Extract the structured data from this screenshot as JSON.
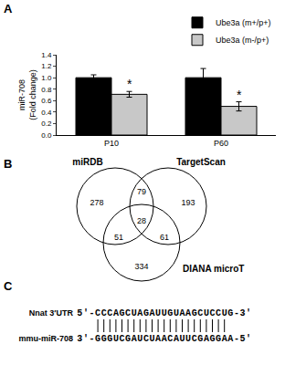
{
  "chart_data": {
    "type": "bar",
    "label": "A",
    "ylabel": [
      "miR-708",
      "(Fold change)"
    ],
    "categories": [
      "P10",
      "P60"
    ],
    "series": [
      {
        "name": "Ube3a (m+/p+)",
        "color": "#000000",
        "values": [
          1.0,
          1.0
        ],
        "errors": [
          0.05,
          0.16
        ]
      },
      {
        "name": "Ube3a (m-/p+)",
        "color": "#c8c8c8",
        "values": [
          0.71,
          0.5
        ],
        "errors": [
          0.05,
          0.08
        ]
      }
    ],
    "annotations": [
      {
        "category": "P10",
        "series": "Ube3a (m-/p+)",
        "text": "*"
      },
      {
        "category": "P60",
        "series": "Ube3a (m-/p+)",
        "text": "*"
      }
    ],
    "ylim": [
      0,
      1.4
    ],
    "yticks": [
      {
        "value": 0,
        "label": "0.0"
      },
      {
        "value": 0.2,
        "label": "0.2"
      },
      {
        "value": 0.4,
        "label": "0.4"
      },
      {
        "value": 0.6,
        "label": "0.6"
      },
      {
        "value": 0.8,
        "label": "0.8"
      },
      {
        "value": 1.0,
        "label": "1.0"
      },
      {
        "value": 1.2,
        "label": "1.2"
      },
      {
        "value": 1.4,
        "label": "1.4"
      }
    ],
    "grid": false,
    "legend": "top right"
  },
  "venn": {
    "label": "B",
    "sets": [
      "miRDB",
      "TargetScan",
      "DIANA microT"
    ],
    "regions": [
      {
        "sets": [
          "miRDB"
        ],
        "value": 278
      },
      {
        "sets": [
          "TargetScan"
        ],
        "value": 193
      },
      {
        "sets": [
          "DIANA microT"
        ],
        "value": 334
      },
      {
        "sets": [
          "miRDB",
          "TargetScan"
        ],
        "value": 79
      },
      {
        "sets": [
          "miRDB",
          "DIANA microT"
        ],
        "value": 51
      },
      {
        "sets": [
          "TargetScan",
          "DIANA microT"
        ],
        "value": 61
      },
      {
        "sets": [
          "miRDB",
          "TargetScan",
          "DIANA microT"
        ],
        "value": 28
      }
    ]
  },
  "alignment": {
    "label": "C",
    "rows": [
      {
        "name": "Nnat 3′UTR",
        "sequence": "5'-CCCAGCUAGAUUGUAAGCUCCUG-3'"
      },
      {
        "name": "mmu-miR-708",
        "sequence": "3'-GGGUCGAUCUAACAUUCGAGGAA-5'"
      }
    ]
  }
}
